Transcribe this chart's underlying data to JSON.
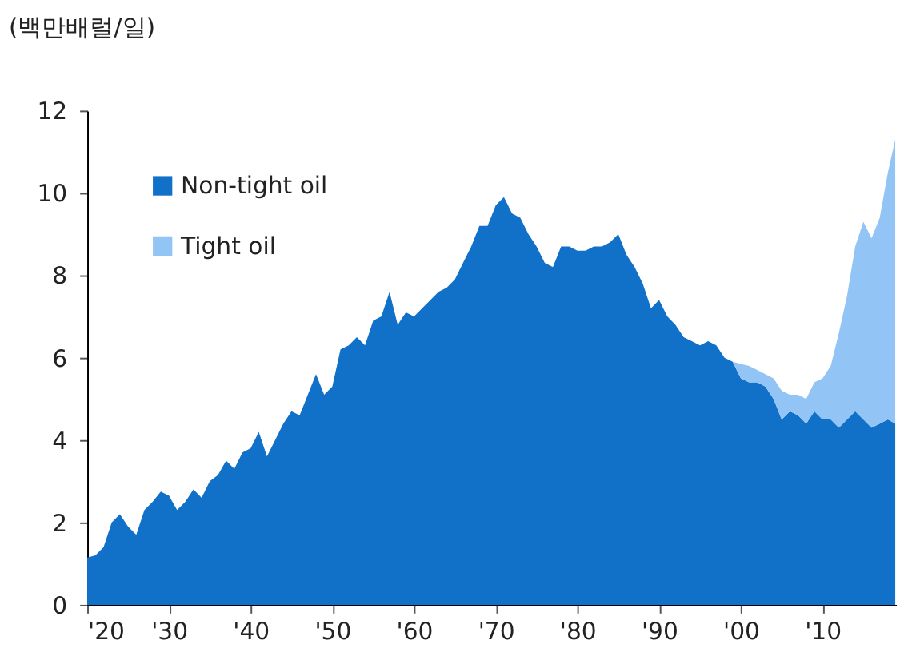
{
  "chart_data": {
    "type": "area",
    "stacked": true,
    "ylabel": "(백만배럴/일)",
    "x": [
      1920,
      1921,
      1922,
      1923,
      1924,
      1925,
      1926,
      1927,
      1928,
      1929,
      1930,
      1931,
      1932,
      1933,
      1934,
      1935,
      1936,
      1937,
      1938,
      1939,
      1940,
      1941,
      1942,
      1943,
      1944,
      1945,
      1946,
      1947,
      1948,
      1949,
      1950,
      1951,
      1952,
      1953,
      1954,
      1955,
      1956,
      1957,
      1958,
      1959,
      1960,
      1961,
      1962,
      1963,
      1964,
      1965,
      1966,
      1967,
      1968,
      1969,
      1970,
      1971,
      1972,
      1973,
      1974,
      1975,
      1976,
      1977,
      1978,
      1979,
      1980,
      1981,
      1982,
      1983,
      1984,
      1985,
      1986,
      1987,
      1988,
      1989,
      1990,
      1991,
      1992,
      1993,
      1994,
      1995,
      1996,
      1997,
      1998,
      1999,
      2000,
      2001,
      2002,
      2003,
      2004,
      2005,
      2006,
      2007,
      2008,
      2009,
      2010,
      2011,
      2012,
      2013,
      2014,
      2015,
      2016,
      2017,
      2018,
      2018.9
    ],
    "series": [
      {
        "name": "Non-tight oil",
        "color": "#1170c8",
        "values": [
          1.15,
          1.2,
          1.4,
          2.0,
          2.2,
          1.9,
          1.7,
          2.3,
          2.5,
          2.75,
          2.65,
          2.3,
          2.5,
          2.8,
          2.6,
          3.0,
          3.15,
          3.5,
          3.3,
          3.7,
          3.8,
          4.2,
          3.6,
          4.0,
          4.4,
          4.7,
          4.6,
          5.1,
          5.6,
          5.1,
          5.3,
          6.2,
          6.3,
          6.5,
          6.3,
          6.9,
          7.0,
          7.6,
          6.8,
          7.1,
          7.0,
          7.2,
          7.4,
          7.6,
          7.7,
          7.9,
          8.3,
          8.7,
          9.2,
          9.2,
          9.7,
          9.9,
          9.5,
          9.4,
          9.0,
          8.7,
          8.3,
          8.2,
          8.7,
          8.7,
          8.6,
          8.6,
          8.7,
          8.7,
          8.8,
          9.0,
          8.5,
          8.2,
          7.8,
          7.2,
          7.4,
          7.0,
          6.8,
          6.5,
          6.4,
          6.3,
          6.4,
          6.3,
          6.0,
          5.9,
          5.5,
          5.4,
          5.4,
          5.3,
          5.0,
          4.5,
          4.7,
          4.6,
          4.4,
          4.7,
          4.5,
          4.5,
          4.3,
          4.5,
          4.7,
          4.5,
          4.3,
          4.4,
          4.5,
          4.4
        ]
      },
      {
        "name": "Tight oil",
        "color": "#92c5f5",
        "values": [
          0,
          0,
          0,
          0,
          0,
          0,
          0,
          0,
          0,
          0,
          0,
          0,
          0,
          0,
          0,
          0,
          0,
          0,
          0,
          0,
          0,
          0,
          0,
          0,
          0,
          0,
          0,
          0,
          0,
          0,
          0,
          0,
          0,
          0,
          0,
          0,
          0,
          0,
          0,
          0,
          0,
          0,
          0,
          0,
          0,
          0,
          0,
          0,
          0,
          0,
          0,
          0,
          0,
          0,
          0,
          0,
          0,
          0,
          0,
          0,
          0,
          0,
          0,
          0,
          0,
          0,
          0,
          0,
          0,
          0,
          0,
          0,
          0,
          0,
          0,
          0,
          0,
          0,
          0,
          0,
          0.35,
          0.4,
          0.3,
          0.3,
          0.5,
          0.7,
          0.4,
          0.5,
          0.6,
          0.7,
          1.0,
          1.3,
          2.3,
          3.0,
          4.0,
          4.8,
          4.6,
          5.0,
          6.0,
          6.9
        ]
      }
    ],
    "xlim": [
      1920,
      2019
    ],
    "xticks": [
      {
        "value": 1920,
        "label": "'20"
      },
      {
        "value": 1930,
        "label": "'30"
      },
      {
        "value": 1940,
        "label": "'40"
      },
      {
        "value": 1950,
        "label": "'50"
      },
      {
        "value": 1960,
        "label": "'60"
      },
      {
        "value": 1970,
        "label": "'70"
      },
      {
        "value": 1980,
        "label": "'80"
      },
      {
        "value": 1990,
        "label": "'90"
      },
      {
        "value": 2000,
        "label": "'00"
      },
      {
        "value": 2010,
        "label": "'10"
      }
    ],
    "ylim": [
      0,
      12
    ],
    "yticks": [
      0,
      2,
      4,
      6,
      8,
      10,
      12
    ],
    "grid": false,
    "legend": "top left"
  }
}
